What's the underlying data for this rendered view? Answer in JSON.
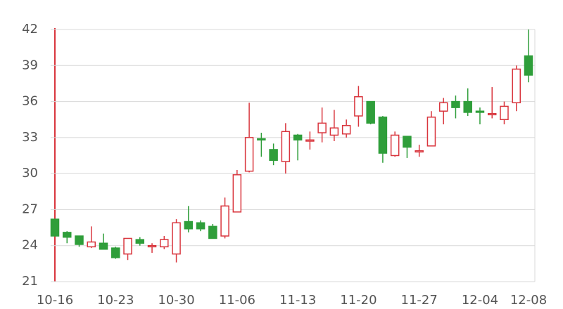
{
  "chart_data": {
    "type": "candlestick",
    "categories": [
      "10-16",
      null,
      null,
      null,
      null,
      "10-23",
      null,
      null,
      null,
      null,
      "10-30",
      null,
      null,
      null,
      null,
      "11-06",
      null,
      null,
      null,
      null,
      "11-13",
      null,
      null,
      null,
      null,
      "11-20",
      null,
      null,
      null,
      null,
      "11-27",
      null,
      null,
      null,
      null,
      "12-04",
      null,
      null,
      null,
      "12-08"
    ],
    "open": [
      26.2,
      25.1,
      24.8,
      23.9,
      24.2,
      23.8,
      23.3,
      24.5,
      23.9,
      23.9,
      23.3,
      26.0,
      25.9,
      25.6,
      24.8,
      26.8,
      30.2,
      32.9,
      32.0,
      31.0,
      33.2,
      32.7,
      33.4,
      33.2,
      33.3,
      34.8,
      36.0,
      34.7,
      31.5,
      33.1,
      31.8,
      32.3,
      35.2,
      36.0,
      36.0,
      35.2,
      34.9,
      34.5,
      35.9,
      39.8
    ],
    "high": [
      26.2,
      25.2,
      24.8,
      25.6,
      25.0,
      23.9,
      24.6,
      24.7,
      24.2,
      24.8,
      26.2,
      27.3,
      26.1,
      25.8,
      28.0,
      30.3,
      35.9,
      33.4,
      32.5,
      34.2,
      33.3,
      33.5,
      35.5,
      35.3,
      34.5,
      37.3,
      36.0,
      34.8,
      33.5,
      33.1,
      32.4,
      35.2,
      36.3,
      36.5,
      37.1,
      35.5,
      37.2,
      36.0,
      39.0,
      42.0
    ],
    "low": [
      24.8,
      24.2,
      23.9,
      23.8,
      23.7,
      22.9,
      22.8,
      24.0,
      23.4,
      23.7,
      22.6,
      25.1,
      25.2,
      24.6,
      24.6,
      26.8,
      30.1,
      31.4,
      30.7,
      30.0,
      31.1,
      32.0,
      32.6,
      32.7,
      33.0,
      33.9,
      34.1,
      30.9,
      31.4,
      31.3,
      31.4,
      32.3,
      34.1,
      34.6,
      34.8,
      34.1,
      34.6,
      34.1,
      35.2,
      37.6
    ],
    "close": [
      24.8,
      24.7,
      24.1,
      24.3,
      23.7,
      23.0,
      24.6,
      24.2,
      24.0,
      24.5,
      25.9,
      25.4,
      25.4,
      24.6,
      27.3,
      29.9,
      33.0,
      32.8,
      31.1,
      33.5,
      32.8,
      32.8,
      34.2,
      33.8,
      34.0,
      36.4,
      34.2,
      31.7,
      33.2,
      32.2,
      31.9,
      34.7,
      35.9,
      35.5,
      35.1,
      35.1,
      35.0,
      35.6,
      38.7,
      38.2
    ],
    "ylim": [
      21,
      42
    ],
    "yticks": [
      21,
      24,
      27,
      30,
      33,
      36,
      39,
      42
    ],
    "grid": true,
    "up_color": "#d9363e",
    "down_color": "#2f9e3a"
  }
}
